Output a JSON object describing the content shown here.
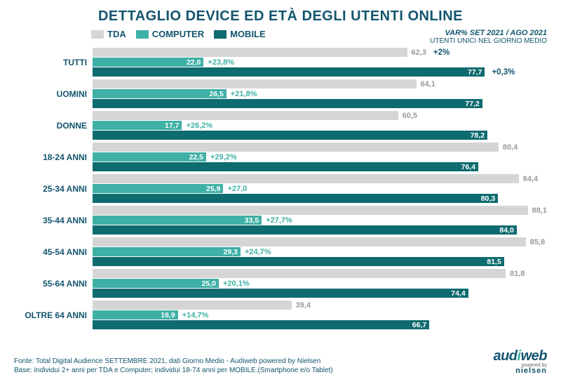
{
  "title": "DETTAGLIO DEVICE ED ETÀ DEGLI UTENTI ONLINE",
  "title_color": "#13556e",
  "legend": {
    "tda": {
      "label": "TDA",
      "color": "#d5d5d5",
      "text": "#13556e"
    },
    "computer": {
      "label": "COMPUTER",
      "color": "#3fb0a6",
      "text": "#13556e"
    },
    "mobile": {
      "label": "MOBILE",
      "color": "#0e6b6f",
      "text": "#13556e"
    }
  },
  "var_header": {
    "l1": "VAR% SET 2021 / AGO 2021",
    "l2": "UTENTI UNICI NEL GIORNO MEDIO",
    "color": "#13556e"
  },
  "chart": {
    "max": 90,
    "colors": {
      "tda": "#d5d5d5",
      "computer": "#3fb0a6",
      "mobile": "#0e6b6f",
      "end_label_tda": "#9a9a9a",
      "end_label_mobile": "#0e6b6f",
      "var_computer": "#3fb0a6",
      "extra": "#13556e",
      "row_label": "#13556e"
    },
    "rows": [
      {
        "label": "TUTTI",
        "tda": 62.3,
        "computer": 22.0,
        "computer_var": "+23,8%",
        "mobile": 77.7,
        "tda_lbl": "62,3",
        "comp_lbl": "22,0",
        "mob_lbl": "77,7",
        "extra_tda": "+2%",
        "extra_mob": "+0,3%"
      },
      {
        "label": "UOMINI",
        "tda": 64.1,
        "computer": 26.5,
        "computer_var": "+21,8%",
        "mobile": 77.2,
        "tda_lbl": "64,1",
        "comp_lbl": "26,5",
        "mob_lbl": "77,2"
      },
      {
        "label": "DONNE",
        "tda": 60.5,
        "computer": 17.7,
        "computer_var": "+26,2%",
        "mobile": 78.2,
        "tda_lbl": "60,5",
        "comp_lbl": "17,7",
        "mob_lbl": "78,2"
      },
      {
        "label": "18-24 ANNI",
        "tda": 80.4,
        "computer": 22.5,
        "computer_var": "+29,2%",
        "mobile": 76.4,
        "tda_lbl": "80,4",
        "comp_lbl": "22,5",
        "mob_lbl": "76,4"
      },
      {
        "label": "25-34 ANNI",
        "tda": 84.4,
        "computer": 25.9,
        "computer_var": "+27,0",
        "mobile": 80.3,
        "tda_lbl": "84,4",
        "comp_lbl": "25,9",
        "mob_lbl": "80,3"
      },
      {
        "label": "35-44 ANNI",
        "tda": 88.1,
        "computer": 33.5,
        "computer_var": "+27,7%",
        "mobile": 84.0,
        "tda_lbl": "88,1",
        "comp_lbl": "33,5",
        "mob_lbl": "84,0"
      },
      {
        "label": "45-54 ANNI",
        "tda": 85.8,
        "computer": 29.3,
        "computer_var": "+24,7%",
        "mobile": 81.5,
        "tda_lbl": "85,8",
        "comp_lbl": "29,3",
        "mob_lbl": "81,5"
      },
      {
        "label": "55-64 ANNI",
        "tda": 81.8,
        "computer": 25.0,
        "computer_var": "+20,1%",
        "mobile": 74.4,
        "tda_lbl": "81,8",
        "comp_lbl": "25,0",
        "mob_lbl": "74,4"
      },
      {
        "label": "OLTRE 64 ANNI",
        "tda": 39.4,
        "computer": 16.9,
        "computer_var": "+14,7%",
        "mobile": 66.7,
        "tda_lbl": "39,4",
        "comp_lbl": "16,9",
        "mob_lbl": "66,7"
      }
    ]
  },
  "footer": {
    "line1": "Fonte: Total Digital Audience SETTEMBRE 2021, dati Giorno Medio - Audiweb powered by Nielsen",
    "line2": "Base:  Individui 2+ anni per TDA e Computer; individui 18-74 anni per MOBILE.(Smartphone e/o Tablet)",
    "color": "#13556e"
  },
  "logo": {
    "audiweb_color1": "#13556e",
    "audiweb_color2": "#3fb0a6",
    "nielsen_color": "#13556e",
    "text_audi": "aud",
    "text_i": "i",
    "text_web": "web",
    "powered": "powered",
    "by": "by",
    "nielsen": "nielsen"
  }
}
